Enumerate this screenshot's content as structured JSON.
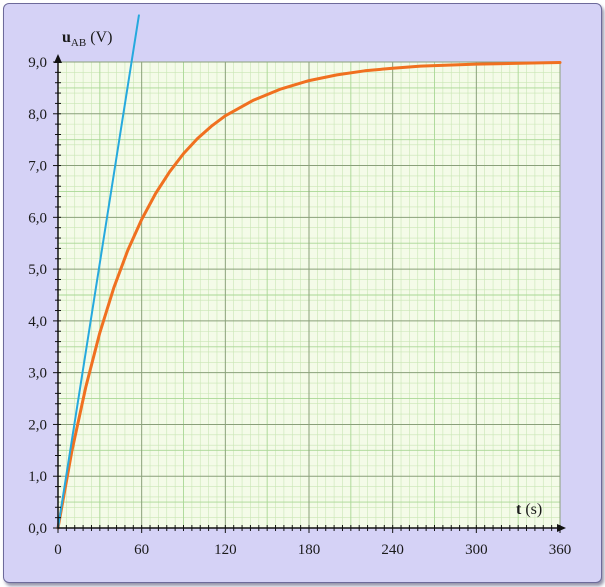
{
  "chart_data": {
    "type": "line",
    "title": "",
    "ylabel": {
      "symbol": "u",
      "subscript": "AB",
      "unit": " (V)"
    },
    "xlabel": {
      "symbol": "t",
      "unit": " (s)"
    },
    "xlim": [
      0,
      360
    ],
    "ylim": [
      0,
      9
    ],
    "xticks": [
      0,
      60,
      120,
      180,
      240,
      300,
      360
    ],
    "xtick_labels": [
      "0",
      "60",
      "120",
      "180",
      "240",
      "300",
      "360"
    ],
    "yticks": [
      0,
      1,
      2,
      3,
      4,
      5,
      6,
      7,
      8,
      9
    ],
    "ytick_labels": [
      "0,0",
      "1,0",
      "2,0",
      "3,0",
      "4,0",
      "5,0",
      "6,0",
      "7,0",
      "8,0",
      "9,0"
    ],
    "grid": true,
    "series": [
      {
        "kind": "curve",
        "color": "#f07020",
        "x": [
          0,
          10,
          20,
          30,
          40,
          50,
          60,
          70,
          80,
          90,
          100,
          110,
          120,
          140,
          160,
          180,
          200,
          220,
          240,
          260,
          280,
          300,
          320,
          340,
          360
        ],
        "values": [
          0,
          1.49,
          2.73,
          3.77,
          4.64,
          5.36,
          5.96,
          6.46,
          6.88,
          7.23,
          7.52,
          7.76,
          7.96,
          8.26,
          8.48,
          8.64,
          8.75,
          8.83,
          8.88,
          8.92,
          8.94,
          8.96,
          8.97,
          8.98,
          8.99
        ]
      },
      {
        "kind": "tangent at origin",
        "color": "#26a9de",
        "x": [
          0,
          58
        ],
        "values": [
          0,
          9.9
        ]
      }
    ]
  }
}
